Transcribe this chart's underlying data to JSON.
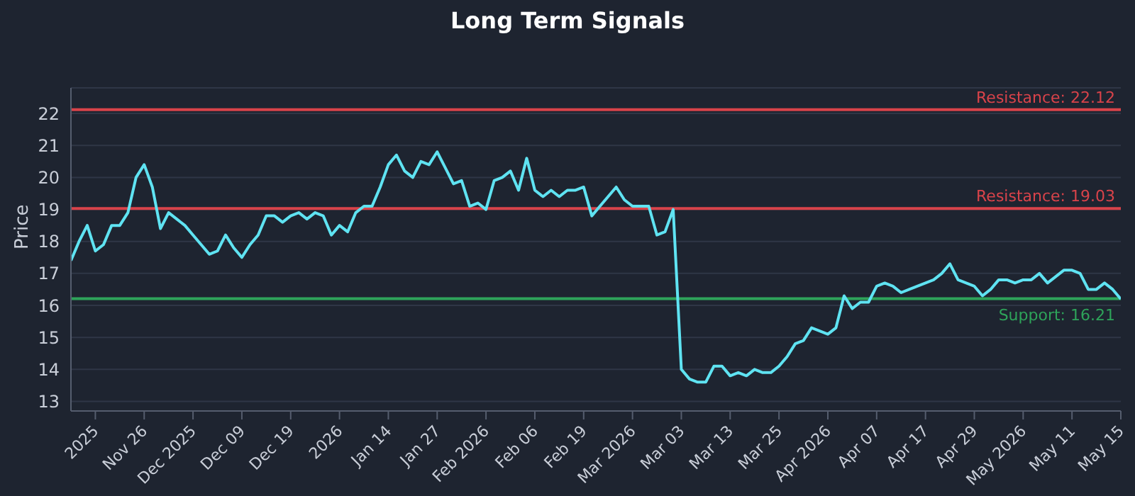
{
  "chart_data": {
    "type": "line",
    "title": "Long Term Signals",
    "ylabel": "Price",
    "categories": [
      null,
      null,
      null,
      "2025",
      null,
      null,
      null,
      null,
      null,
      "Nov 26",
      null,
      null,
      null,
      null,
      null,
      "Dec 2025",
      null,
      null,
      null,
      null,
      null,
      "Dec 09",
      null,
      null,
      null,
      null,
      null,
      "Dec 19",
      null,
      null,
      null,
      null,
      null,
      "2026",
      null,
      null,
      null,
      null,
      null,
      "Jan 14",
      null,
      null,
      null,
      null,
      null,
      "Jan 27",
      null,
      null,
      null,
      null,
      null,
      "Feb 2026",
      null,
      null,
      null,
      null,
      null,
      "Feb 06",
      null,
      null,
      null,
      null,
      null,
      "Feb 19",
      null,
      null,
      null,
      null,
      null,
      "Mar 2026",
      null,
      null,
      null,
      null,
      null,
      "Mar 03",
      null,
      null,
      null,
      null,
      null,
      "Mar 13",
      null,
      null,
      null,
      null,
      null,
      "Mar 25",
      null,
      null,
      null,
      null,
      null,
      "Apr 2026",
      null,
      null,
      null,
      null,
      null,
      "Apr 07",
      null,
      null,
      null,
      null,
      null,
      "Apr 17",
      null,
      null,
      null,
      null,
      null,
      "Apr 29",
      null,
      null,
      null,
      null,
      null,
      "May 2026",
      null,
      null,
      null,
      null,
      null,
      "May 11",
      null,
      null,
      null,
      null,
      null,
      "May 15"
    ],
    "series": [
      {
        "color": "#5fe3f2",
        "values": [
          17.4,
          18.0,
          18.5,
          17.7,
          17.9,
          18.5,
          18.5,
          18.9,
          20.0,
          20.4,
          19.7,
          18.4,
          18.9,
          18.7,
          18.5,
          18.2,
          17.9,
          17.6,
          17.7,
          18.2,
          17.8,
          17.5,
          17.9,
          18.2,
          18.8,
          18.8,
          18.6,
          18.8,
          18.9,
          18.7,
          18.9,
          18.8,
          18.2,
          18.5,
          18.3,
          18.9,
          19.1,
          19.1,
          19.7,
          20.4,
          20.7,
          20.2,
          20.0,
          20.5,
          20.4,
          20.8,
          20.3,
          19.8,
          19.9,
          19.1,
          19.2,
          19.0,
          19.9,
          20.0,
          20.2,
          19.6,
          20.6,
          19.6,
          19.4,
          19.6,
          19.4,
          19.6,
          19.6,
          19.7,
          18.8,
          19.1,
          19.4,
          19.7,
          19.3,
          19.1,
          19.1,
          19.1,
          18.2,
          18.3,
          19.0,
          14.0,
          13.7,
          13.6,
          13.6,
          14.1,
          14.1,
          13.8,
          13.9,
          13.8,
          14.0,
          13.9,
          13.9,
          14.1,
          14.4,
          14.8,
          14.9,
          15.3,
          15.2,
          15.1,
          15.3,
          16.3,
          15.9,
          16.1,
          16.1,
          16.6,
          16.7,
          16.6,
          16.4,
          16.5,
          16.6,
          16.7,
          16.8,
          17.0,
          17.3,
          16.8,
          16.7,
          16.6,
          16.3,
          16.5,
          16.8,
          16.8,
          16.7,
          16.8,
          16.8,
          17.0,
          16.7,
          16.9,
          17.1,
          17.1,
          17.0,
          16.5,
          16.5,
          16.7,
          16.5,
          16.2
        ]
      }
    ],
    "ylim": [
      12.7,
      22.8
    ],
    "yticks": [
      13,
      14,
      15,
      16,
      17,
      18,
      19,
      20,
      21,
      22
    ],
    "grid": "y",
    "marker": "none",
    "line_style": "solid",
    "legend": false,
    "ref_lines": [
      {
        "axis": "y",
        "value": 22.12,
        "label": "Resistance: 22.12",
        "color": "#d9434a"
      },
      {
        "axis": "y",
        "value": 19.03,
        "label": "Resistance: 19.03",
        "color": "#d9434a"
      },
      {
        "axis": "y",
        "value": 16.21,
        "label": "Support: 16.21",
        "color": "#2ea35a"
      }
    ]
  }
}
